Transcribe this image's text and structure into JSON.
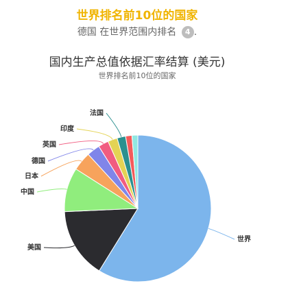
{
  "header": {
    "title": "世界排名前10位的国家",
    "rank_text": "德国 在世界范围内排名",
    "rank_value": "4",
    "rank_suffix": "."
  },
  "chart_data": {
    "type": "pie",
    "title": "国内生产总值依据汇率结算 (美元)",
    "subtitle": "世界排名前10位的国家",
    "legend": "none",
    "slices": [
      {
        "label": "世界",
        "value": 59.3,
        "color": "#7cb5ec"
      },
      {
        "label": "美国",
        "value": 15.6,
        "color": "#2b2b2f"
      },
      {
        "label": "中国",
        "value": 9.8,
        "color": "#90ed7d"
      },
      {
        "label": "日本",
        "value": 4.2,
        "color": "#f7a35c"
      },
      {
        "label": "德国",
        "value": 2.9,
        "color": "#8085e9"
      },
      {
        "label": "英国",
        "value": 2.3,
        "color": "#f15c80"
      },
      {
        "label": "印度",
        "value": 2.1,
        "color": "#e4d354"
      },
      {
        "label": "法国",
        "value": 1.9,
        "color": "#2b908f"
      },
      {
        "label": "",
        "value": 1.4,
        "color": "#f45b5b"
      },
      {
        "label": "",
        "value": 1.3,
        "color": "#91e8e1"
      }
    ]
  }
}
